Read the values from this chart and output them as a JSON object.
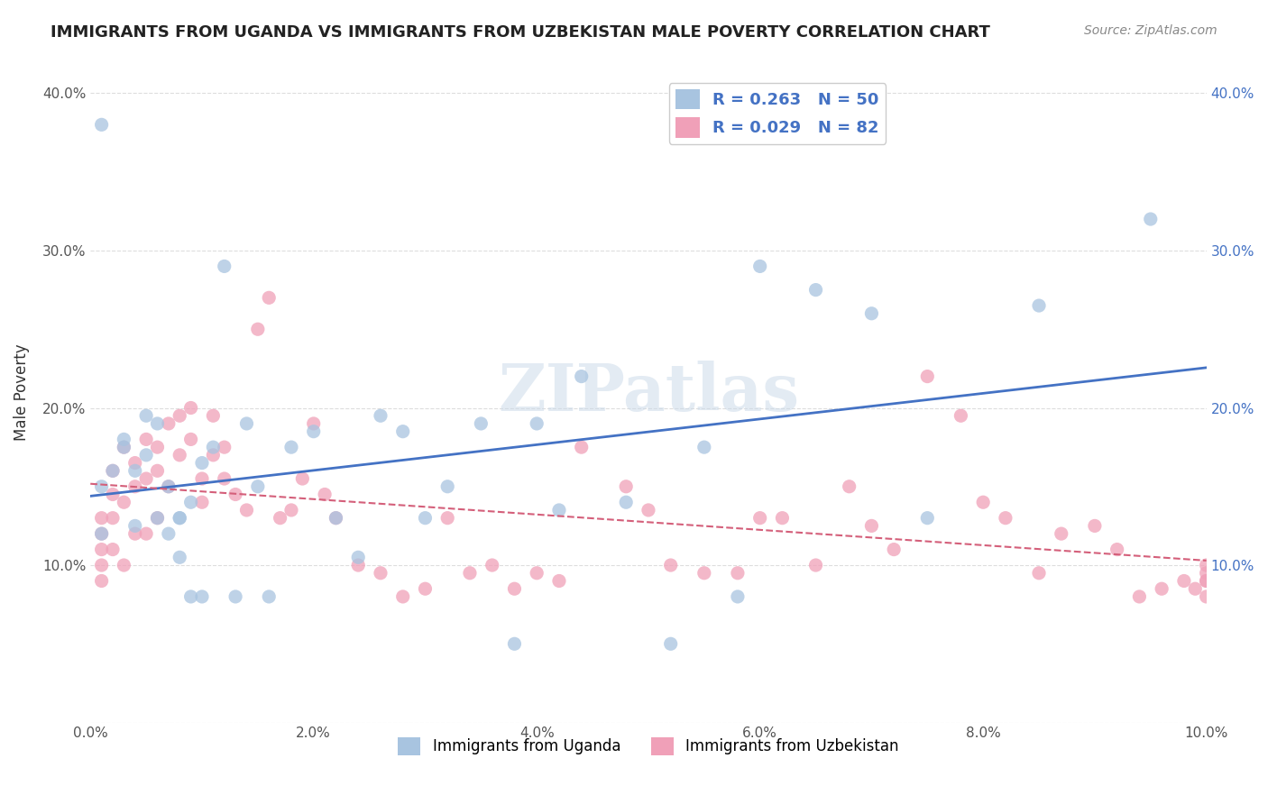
{
  "title": "IMMIGRANTS FROM UGANDA VS IMMIGRANTS FROM UZBEKISTAN MALE POVERTY CORRELATION CHART",
  "source": "Source: ZipAtlas.com",
  "xlabel_bottom": "",
  "ylabel": "Male Poverty",
  "xlim": [
    0.0,
    0.1
  ],
  "ylim": [
    0.0,
    0.42
  ],
  "xticks": [
    0.0,
    0.02,
    0.04,
    0.06,
    0.08,
    0.1
  ],
  "yticks": [
    0.0,
    0.1,
    0.2,
    0.3,
    0.4
  ],
  "xticklabels": [
    "0.0%",
    "2.0%",
    "4.0%",
    "6.0%",
    "8.0%",
    "10.0%"
  ],
  "yticklabels_left": [
    "",
    "10.0%",
    "20.0%",
    "30.0%",
    "40.0%"
  ],
  "yticklabels_right": [
    "",
    "10.0%",
    "20.0%",
    "30.0%",
    "40.0%"
  ],
  "legend_r1": "R = 0.263",
  "legend_n1": "N = 50",
  "legend_r2": "R = 0.029",
  "legend_n2": "N = 82",
  "color_uganda": "#a8c4e0",
  "color_uzbekistan": "#f0a0b8",
  "line_color_uganda": "#4472c4",
  "line_color_uzbekistan": "#d45f7a",
  "watermark": "ZIPatlas",
  "uganda_x": [
    0.001,
    0.008,
    0.001,
    0.001,
    0.002,
    0.003,
    0.003,
    0.004,
    0.004,
    0.005,
    0.005,
    0.006,
    0.006,
    0.007,
    0.007,
    0.008,
    0.008,
    0.009,
    0.009,
    0.01,
    0.01,
    0.011,
    0.012,
    0.013,
    0.014,
    0.015,
    0.016,
    0.018,
    0.02,
    0.022,
    0.024,
    0.026,
    0.028,
    0.03,
    0.032,
    0.035,
    0.038,
    0.04,
    0.042,
    0.044,
    0.048,
    0.052,
    0.055,
    0.058,
    0.06,
    0.065,
    0.07,
    0.075,
    0.085,
    0.095
  ],
  "uganda_y": [
    0.38,
    0.13,
    0.15,
    0.12,
    0.16,
    0.175,
    0.18,
    0.125,
    0.16,
    0.195,
    0.17,
    0.19,
    0.13,
    0.12,
    0.15,
    0.13,
    0.105,
    0.14,
    0.08,
    0.165,
    0.08,
    0.175,
    0.29,
    0.08,
    0.19,
    0.15,
    0.08,
    0.175,
    0.185,
    0.13,
    0.105,
    0.195,
    0.185,
    0.13,
    0.15,
    0.19,
    0.05,
    0.19,
    0.135,
    0.22,
    0.14,
    0.05,
    0.175,
    0.08,
    0.29,
    0.275,
    0.26,
    0.13,
    0.265,
    0.32
  ],
  "uzbekistan_x": [
    0.001,
    0.001,
    0.001,
    0.001,
    0.001,
    0.002,
    0.002,
    0.002,
    0.002,
    0.003,
    0.003,
    0.003,
    0.004,
    0.004,
    0.004,
    0.005,
    0.005,
    0.005,
    0.006,
    0.006,
    0.006,
    0.007,
    0.007,
    0.008,
    0.008,
    0.009,
    0.009,
    0.01,
    0.01,
    0.011,
    0.011,
    0.012,
    0.012,
    0.013,
    0.014,
    0.015,
    0.016,
    0.017,
    0.018,
    0.019,
    0.02,
    0.021,
    0.022,
    0.024,
    0.026,
    0.028,
    0.03,
    0.032,
    0.034,
    0.036,
    0.038,
    0.04,
    0.042,
    0.044,
    0.048,
    0.05,
    0.052,
    0.055,
    0.058,
    0.06,
    0.062,
    0.065,
    0.068,
    0.07,
    0.072,
    0.075,
    0.078,
    0.08,
    0.082,
    0.085,
    0.087,
    0.09,
    0.092,
    0.094,
    0.096,
    0.098,
    0.099,
    0.1,
    0.1,
    0.1,
    0.1,
    0.1
  ],
  "uzbekistan_y": [
    0.12,
    0.11,
    0.13,
    0.1,
    0.09,
    0.145,
    0.16,
    0.13,
    0.11,
    0.175,
    0.14,
    0.1,
    0.165,
    0.15,
    0.12,
    0.18,
    0.155,
    0.12,
    0.175,
    0.16,
    0.13,
    0.19,
    0.15,
    0.195,
    0.17,
    0.2,
    0.18,
    0.155,
    0.14,
    0.195,
    0.17,
    0.175,
    0.155,
    0.145,
    0.135,
    0.25,
    0.27,
    0.13,
    0.135,
    0.155,
    0.19,
    0.145,
    0.13,
    0.1,
    0.095,
    0.08,
    0.085,
    0.13,
    0.095,
    0.1,
    0.085,
    0.095,
    0.09,
    0.175,
    0.15,
    0.135,
    0.1,
    0.095,
    0.095,
    0.13,
    0.13,
    0.1,
    0.15,
    0.125,
    0.11,
    0.22,
    0.195,
    0.14,
    0.13,
    0.095,
    0.12,
    0.125,
    0.11,
    0.08,
    0.085,
    0.09,
    0.085,
    0.08,
    0.09,
    0.095,
    0.09,
    0.1
  ]
}
